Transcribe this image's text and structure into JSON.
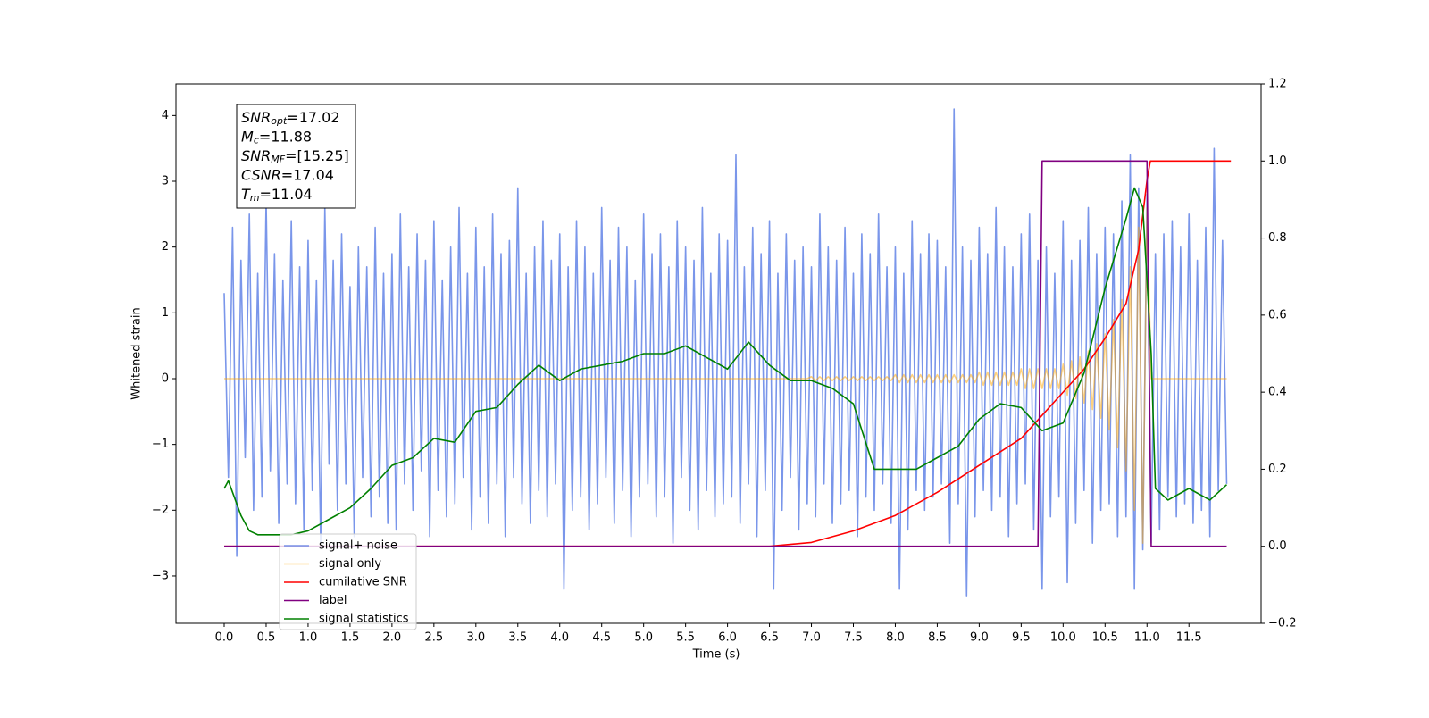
{
  "chart_data": {
    "type": "line",
    "xlabel": "Time (s)",
    "ylabel": "Whitened strain",
    "xlim": [
      -0.575,
      12.36
    ],
    "xticks": [
      {
        "value": 0,
        "label": "0.0"
      },
      0.5,
      {
        "value": 1,
        "label": "1.0"
      },
      1.5,
      {
        "value": 2,
        "label": "2.0"
      },
      2.5,
      {
        "value": 3,
        "label": "3.0"
      },
      3.5,
      {
        "value": 4,
        "label": "4.0"
      },
      4.5,
      {
        "value": 5,
        "label": "5.0"
      },
      5.5,
      {
        "value": 6,
        "label": "6.0"
      },
      6.5,
      {
        "value": 7,
        "label": "7.0"
      },
      7.5,
      {
        "value": 8,
        "label": "8.0"
      },
      8.5,
      {
        "value": 9,
        "label": "9.0"
      },
      9.5,
      {
        "value": 10,
        "label": "10.0"
      },
      10.5,
      {
        "value": 11,
        "label": "11.0"
      },
      11.5
    ],
    "ylim": [
      -3.72,
      4.48
    ],
    "yticks": [
      {
        "value": -3,
        "label": "−3"
      },
      {
        "value": -2,
        "label": "−2"
      },
      {
        "value": -1,
        "label": "−1"
      },
      0,
      1,
      2,
      3,
      4
    ],
    "y2lim": [
      -0.2,
      1.2
    ],
    "y2ticks": [
      {
        "value": -0.2,
        "label": "−0.2"
      },
      {
        "value": 0,
        "label": "0.0"
      },
      0.2,
      0.4,
      0.6,
      0.8,
      {
        "value": 1,
        "label": "1.0"
      },
      1.2
    ],
    "legend": "lower left",
    "annotations": [
      {
        "base": "SNR",
        "sub": "opt",
        "text": "=17.02"
      },
      {
        "base": "M",
        "sub": "c",
        "text": "=11.88"
      },
      {
        "base": "SNR",
        "sub": "MF",
        "text": "=[15.25]"
      },
      {
        "base": "CSNR",
        "text": "=17.04"
      },
      {
        "base": "T",
        "sub": "m",
        "text": "=11.04"
      }
    ],
    "x": [
      0,
      0.05,
      0.1,
      0.15,
      0.2,
      0.25,
      0.3,
      0.35,
      0.4,
      0.45,
      0.5,
      0.55,
      0.6,
      0.65,
      0.7,
      0.75,
      0.8,
      0.85,
      0.9,
      0.95,
      1,
      1.05,
      1.1,
      1.15,
      1.2,
      1.25,
      1.3,
      1.35,
      1.4,
      1.45,
      1.5,
      1.55,
      1.6,
      1.65,
      1.7,
      1.75,
      1.8,
      1.85,
      1.9,
      1.95,
      2,
      2.05,
      2.1,
      2.15,
      2.2,
      2.25,
      2.3,
      2.35,
      2.4,
      2.45,
      2.5,
      2.55,
      2.6,
      2.65,
      2.7,
      2.75,
      2.8,
      2.85,
      2.9,
      2.95,
      3,
      3.05,
      3.1,
      3.15,
      3.2,
      3.25,
      3.3,
      3.35,
      3.4,
      3.45,
      3.5,
      3.55,
      3.6,
      3.65,
      3.7,
      3.75,
      3.8,
      3.85,
      3.9,
      3.95,
      4,
      4.05,
      4.1,
      4.15,
      4.2,
      4.25,
      4.3,
      4.35,
      4.4,
      4.45,
      4.5,
      4.55,
      4.6,
      4.65,
      4.7,
      4.75,
      4.8,
      4.85,
      4.9,
      4.95,
      5,
      5.05,
      5.1,
      5.15,
      5.2,
      5.25,
      5.3,
      5.35,
      5.4,
      5.45,
      5.5,
      5.55,
      5.6,
      5.65,
      5.7,
      5.75,
      5.8,
      5.85,
      5.9,
      5.95,
      6,
      6.05,
      6.1,
      6.15,
      6.2,
      6.25,
      6.3,
      6.35,
      6.4,
      6.45,
      6.5,
      6.55,
      6.6,
      6.65,
      6.7,
      6.75,
      6.8,
      6.85,
      6.9,
      6.95,
      7,
      7.05,
      7.1,
      7.15,
      7.2,
      7.25,
      7.3,
      7.35,
      7.4,
      7.45,
      7.5,
      7.55,
      7.6,
      7.65,
      7.7,
      7.75,
      7.8,
      7.85,
      7.9,
      7.95,
      8,
      8.05,
      8.1,
      8.15,
      8.2,
      8.25,
      8.3,
      8.35,
      8.4,
      8.45,
      8.5,
      8.55,
      8.6,
      8.65,
      8.7,
      8.75,
      8.8,
      8.85,
      8.9,
      8.95,
      9,
      9.05,
      9.1,
      9.15,
      9.2,
      9.25,
      9.3,
      9.35,
      9.4,
      9.45,
      9.5,
      9.55,
      9.6,
      9.65,
      9.7,
      9.75,
      9.8,
      9.85,
      9.9,
      9.95,
      10,
      10.05,
      10.1,
      10.15,
      10.2,
      10.25,
      10.3,
      10.35,
      10.4,
      10.45,
      10.5,
      10.55,
      10.6,
      10.65,
      10.7,
      10.75,
      10.8,
      10.85,
      10.9,
      10.95,
      11,
      11.05,
      11.1,
      11.15,
      11.2,
      11.25,
      11.3,
      11.35,
      11.4,
      11.45,
      11.5,
      11.55,
      11.6,
      11.65,
      11.7,
      11.75,
      11.8,
      11.85,
      11.9,
      11.95
    ],
    "series": [
      {
        "name": "signal+ noise",
        "color": "#4169e1",
        "alpha": 0.7,
        "values": [
          1.3,
          -1.5,
          2.3,
          -2.7,
          1.8,
          -1.2,
          2.5,
          -2.0,
          1.6,
          -1.8,
          2.7,
          -1.4,
          1.9,
          -2.2,
          1.5,
          -1.6,
          2.4,
          -1.9,
          1.7,
          -2.3,
          2.1,
          -1.7,
          1.5,
          -2.5,
          2.6,
          -1.3,
          1.8,
          -2.0,
          2.2,
          -1.6,
          1.4,
          -2.4,
          2.0,
          -1.5,
          1.7,
          -2.1,
          2.3,
          -1.8,
          1.6,
          -2.2,
          1.9,
          -2.3,
          2.5,
          -1.6,
          1.7,
          -2.0,
          2.2,
          -1.4,
          1.8,
          -2.4,
          2.4,
          -1.7,
          1.5,
          -2.1,
          2.0,
          -1.9,
          2.6,
          -1.5,
          1.6,
          -2.3,
          2.3,
          -1.8,
          1.7,
          -2.2,
          2.5,
          -1.6,
          1.9,
          -2.4,
          2.1,
          -1.5,
          2.9,
          -1.9,
          1.6,
          -2.2,
          2.0,
          -1.7,
          2.4,
          -2.1,
          1.8,
          -1.6,
          2.2,
          -3.2,
          1.7,
          -2.0,
          2.4,
          -1.8,
          2.0,
          -2.3,
          1.6,
          -1.9,
          2.6,
          -1.5,
          1.8,
          -2.2,
          2.3,
          -1.7,
          2.0,
          -2.4,
          1.5,
          -1.8,
          2.5,
          -1.6,
          1.9,
          -2.1,
          2.2,
          -1.8,
          1.7,
          -2.5,
          2.4,
          -1.5,
          2.0,
          -2.0,
          1.8,
          -2.3,
          2.6,
          -1.7,
          1.6,
          -2.1,
          2.2,
          -1.9,
          2.1,
          -1.8,
          3.4,
          -2.2,
          1.7,
          -1.6,
          2.3,
          -2.4,
          1.9,
          -1.7,
          2.4,
          -3.2,
          1.6,
          -2.0,
          2.2,
          -1.5,
          1.8,
          -2.3,
          2.0,
          -1.9,
          1.7,
          -2.1,
          2.5,
          -1.6,
          2.0,
          -2.2,
          1.8,
          -1.9,
          2.3,
          -1.7,
          1.6,
          -2.4,
          2.2,
          -1.8,
          1.9,
          -2.0,
          2.5,
          -1.6,
          1.7,
          -2.2,
          2.0,
          -3.2,
          1.6,
          -2.3,
          2.4,
          -1.7,
          1.9,
          -2.0,
          2.2,
          -1.8,
          2.1,
          -1.6,
          1.7,
          -2.5,
          4.1,
          -1.9,
          2.0,
          -3.3,
          1.8,
          -2.1,
          2.3,
          -1.7,
          1.9,
          -2.0,
          2.6,
          -1.8,
          2.0,
          -2.4,
          1.7,
          -1.9,
          2.2,
          -1.6,
          2.5,
          -2.3,
          1.8,
          -3.2,
          2.0,
          -2.1,
          1.6,
          -1.8,
          2.4,
          -3.1,
          1.8,
          -2.2,
          2.1,
          -1.7,
          2.6,
          -2.5,
          1.9,
          -2.0,
          2.3,
          -1.9,
          2.2,
          -2.4,
          2.7,
          -2.1,
          3.4,
          -3.2,
          2.9,
          -2.6,
          2.8,
          -2.5,
          1.9,
          -2.3,
          2.2,
          -1.8,
          2.4,
          -2.1,
          2.0,
          -1.9,
          2.5,
          -2.2,
          1.8,
          -2.0,
          2.3,
          -2.4,
          3.5,
          -1.7,
          2.1,
          -1.6
        ]
      },
      {
        "name": "signal only",
        "color": "#ffa500",
        "alpha": 0.5,
        "values": [
          0,
          0,
          0,
          0,
          0,
          0,
          0,
          0,
          0,
          0,
          0,
          0,
          0,
          0,
          0,
          0,
          0,
          0,
          0,
          0,
          0,
          0,
          0,
          0,
          0,
          0,
          0,
          0,
          0,
          0,
          0,
          0,
          0,
          0,
          0,
          0,
          0,
          0,
          0,
          0,
          0,
          0,
          0,
          0,
          0,
          0,
          0,
          0,
          0,
          0,
          0,
          0,
          0,
          0,
          0,
          0,
          0,
          0,
          0,
          0,
          0,
          0,
          0,
          0,
          0,
          0,
          0,
          0,
          0,
          0,
          0,
          0,
          0,
          0,
          0,
          0,
          0,
          0,
          0,
          0,
          0,
          0,
          0,
          0,
          0,
          0,
          0,
          0,
          0,
          0,
          0,
          0,
          0,
          0,
          0,
          0,
          0,
          0,
          0,
          0,
          0,
          0,
          0,
          0,
          0,
          0,
          0,
          0,
          0,
          0,
          0,
          0,
          0,
          0,
          0,
          0,
          0,
          0,
          0,
          0,
          0,
          0,
          0,
          0,
          0,
          0,
          0,
          0,
          0,
          0,
          0,
          0,
          0,
          0,
          0,
          0,
          0,
          0,
          0,
          0,
          0.03,
          -0.03,
          0.03,
          -0.03,
          0.03,
          -0.03,
          0.03,
          -0.03,
          0.03,
          -0.03,
          0.03,
          -0.03,
          0.03,
          -0.03,
          0.03,
          -0.03,
          0.03,
          -0.03,
          0.03,
          -0.03,
          0.06,
          -0.06,
          0.06,
          -0.06,
          0.06,
          -0.06,
          0.06,
          -0.06,
          0.06,
          -0.06,
          0.06,
          -0.06,
          0.06,
          -0.06,
          0.06,
          -0.06,
          0.06,
          -0.06,
          0.06,
          -0.06,
          0.1,
          -0.1,
          0.1,
          -0.1,
          0.1,
          -0.1,
          0.1,
          -0.1,
          0.1,
          -0.1,
          0.15,
          -0.15,
          0.15,
          -0.15,
          0.15,
          -0.15,
          0.15,
          -0.15,
          0.15,
          -0.15,
          0.22,
          -0.25,
          0.27,
          -0.3,
          0.33,
          -0.37,
          0.42,
          -0.47,
          0.53,
          -0.6,
          0.68,
          -0.78,
          0.9,
          -1.05,
          1.2,
          -1.4,
          1.7,
          -2.0,
          2.3,
          -2.5,
          2.6,
          0,
          0,
          0,
          0,
          0,
          0,
          0,
          0,
          0,
          0,
          0,
          0,
          0,
          0,
          0,
          0,
          0,
          0,
          0
        ]
      },
      {
        "name": "cumilative SNR",
        "color": "#ff0000",
        "axis": "y2",
        "x": [
          0,
          6.5,
          7.0,
          7.5,
          8.0,
          8.5,
          9.0,
          9.5,
          10.0,
          10.25,
          10.5,
          10.75,
          10.9,
          11.0,
          11.04,
          12.0
        ],
        "values": [
          0,
          0,
          0.01,
          0.04,
          0.08,
          0.14,
          0.21,
          0.28,
          0.4,
          0.46,
          0.54,
          0.63,
          0.77,
          0.95,
          1.0,
          1.0
        ]
      },
      {
        "name": "label",
        "color": "#800080",
        "axis": "y2",
        "x": [
          0,
          9.7,
          9.75,
          11.0,
          11.05,
          11.95
        ],
        "values": [
          0,
          0,
          1,
          1,
          0,
          0
        ]
      },
      {
        "name": "signal statistics",
        "color": "#008000",
        "axis": "y2",
        "x": [
          0,
          0.05,
          0.1,
          0.2,
          0.3,
          0.4,
          0.6,
          0.8,
          1.0,
          1.25,
          1.5,
          1.75,
          2.0,
          2.25,
          2.5,
          2.75,
          3.0,
          3.25,
          3.5,
          3.75,
          4.0,
          4.25,
          4.5,
          4.75,
          5.0,
          5.25,
          5.5,
          5.75,
          6.0,
          6.25,
          6.5,
          6.75,
          7.0,
          7.25,
          7.5,
          7.75,
          8.0,
          8.25,
          8.5,
          8.75,
          9.0,
          9.25,
          9.5,
          9.75,
          10.0,
          10.25,
          10.5,
          10.75,
          10.85,
          10.95,
          11.05,
          11.1,
          11.25,
          11.5,
          11.75,
          11.95
        ],
        "values": [
          0.15,
          0.17,
          0.14,
          0.08,
          0.04,
          0.03,
          0.03,
          0.03,
          0.04,
          0.07,
          0.1,
          0.15,
          0.21,
          0.23,
          0.28,
          0.27,
          0.35,
          0.36,
          0.42,
          0.47,
          0.43,
          0.46,
          0.47,
          0.48,
          0.5,
          0.5,
          0.52,
          0.49,
          0.46,
          0.53,
          0.47,
          0.43,
          0.43,
          0.41,
          0.37,
          0.2,
          0.2,
          0.2,
          0.23,
          0.26,
          0.33,
          0.37,
          0.36,
          0.3,
          0.32,
          0.45,
          0.67,
          0.85,
          0.93,
          0.88,
          0.5,
          0.15,
          0.12,
          0.15,
          0.12,
          0.16
        ]
      }
    ]
  }
}
